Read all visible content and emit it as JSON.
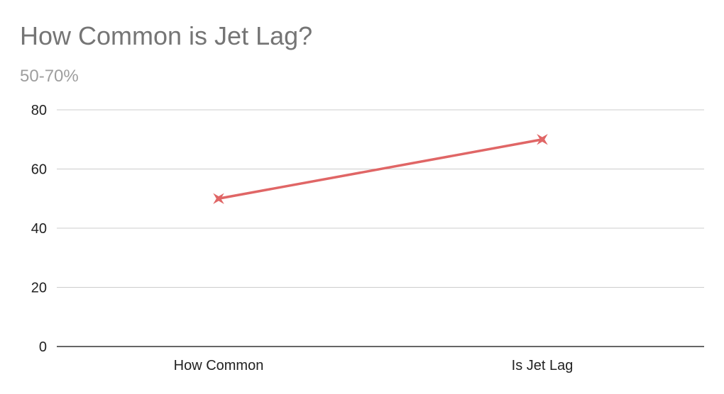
{
  "chart_data": {
    "type": "line",
    "title": "How Common is Jet Lag?",
    "subtitle": "50-70%",
    "categories": [
      "How Common",
      "Is Jet Lag"
    ],
    "series": [
      {
        "values": [
          50,
          70
        ],
        "color": "#e06666",
        "marker": "star-cross"
      }
    ],
    "xlabel": "",
    "ylabel": "",
    "ylim": [
      0,
      80
    ],
    "yticks": [
      "0",
      "20",
      "40",
      "60",
      "80"
    ],
    "grid": true,
    "legend": "none",
    "colors": {
      "grid": "#cccccc",
      "axis": "#333333",
      "title": "#757575",
      "subtitle": "#9e9e9e"
    }
  }
}
